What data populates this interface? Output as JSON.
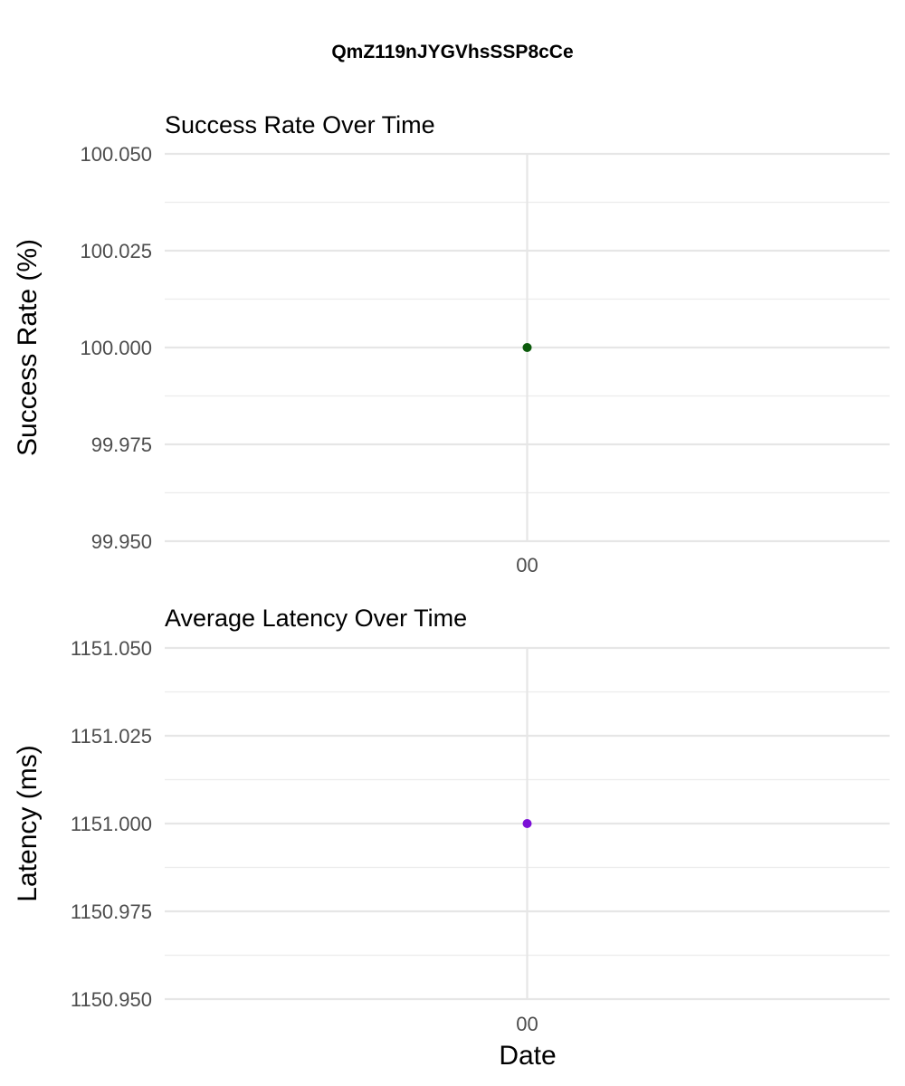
{
  "main_title": "QmZ119nJYGVhsSSP8cCe",
  "chart_data": [
    {
      "type": "scatter",
      "title": "Success Rate Over Time",
      "xlabel": "",
      "ylabel": "Success Rate (%)",
      "x_categories": [
        "00"
      ],
      "points": [
        {
          "x": "00",
          "y": 100.0
        }
      ],
      "ylim": [
        99.95,
        100.05
      ],
      "yticks": [
        "100.050",
        "100.025",
        "100.000",
        "99.975",
        "99.950"
      ],
      "grid": true,
      "point_color": "#0b5a0b"
    },
    {
      "type": "scatter",
      "title": "Average Latency Over Time",
      "xlabel": "Date",
      "ylabel": "Latency (ms)",
      "x_categories": [
        "00"
      ],
      "points": [
        {
          "x": "00",
          "y": 1151.0
        }
      ],
      "ylim": [
        1150.95,
        1151.05
      ],
      "yticks": [
        "1151.050",
        "1151.025",
        "1151.000",
        "1150.975",
        "1150.950"
      ],
      "grid": true,
      "point_color": "#7b0fd6"
    }
  ]
}
